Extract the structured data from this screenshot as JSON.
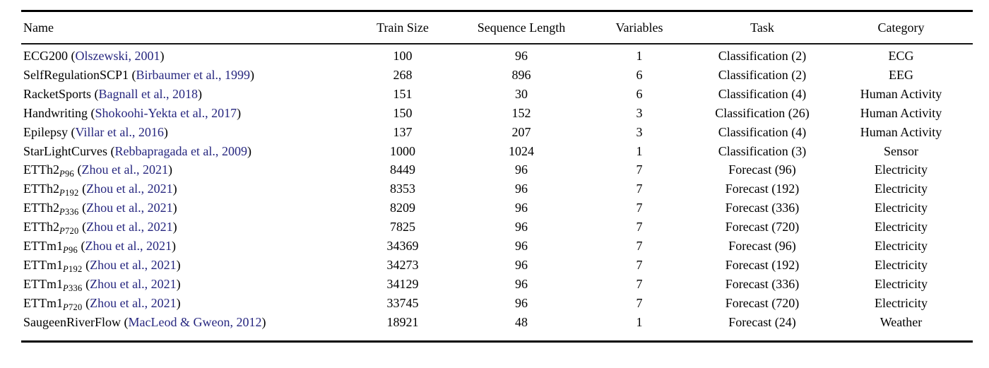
{
  "table": {
    "columns": [
      "Name",
      "Train Size",
      "Sequence Length",
      "Variables",
      "Task",
      "Category"
    ],
    "colors": {
      "citation_link": "#26267F",
      "text": "#000000",
      "rule": "#000000"
    },
    "rows": [
      {
        "name": "ECG200",
        "sub": "",
        "cite_author": "Olszewski",
        "cite_year": "2001",
        "train_size": "100",
        "sequence_length": "96",
        "variables": "1",
        "task": "Classification (2)",
        "category": "ECG"
      },
      {
        "name": "SelfRegulationSCP1",
        "sub": "",
        "cite_author": "Birbaumer et al.",
        "cite_year": "1999",
        "train_size": "268",
        "sequence_length": "896",
        "variables": "6",
        "task": "Classification (2)",
        "category": "EEG"
      },
      {
        "name": "RacketSports",
        "sub": "",
        "cite_author": "Bagnall et al.",
        "cite_year": "2018",
        "train_size": "151",
        "sequence_length": "30",
        "variables": "6",
        "task": "Classification (4)",
        "category": "Human Activity"
      },
      {
        "name": "Handwriting",
        "sub": "",
        "cite_author": "Shokoohi-Yekta et al.",
        "cite_year": "2017",
        "train_size": "150",
        "sequence_length": "152",
        "variables": "3",
        "task": "Classification (26)",
        "category": "Human Activity"
      },
      {
        "name": "Epilepsy",
        "sub": "",
        "cite_author": "Villar et al.",
        "cite_year": "2016",
        "train_size": "137",
        "sequence_length": "207",
        "variables": "3",
        "task": "Classification (4)",
        "category": "Human Activity"
      },
      {
        "name": "StarLightCurves",
        "sub": "",
        "cite_author": "Rebbapragada et al.",
        "cite_year": "2009",
        "train_size": "1000",
        "sequence_length": "1024",
        "variables": "1",
        "task": "Classification (3)",
        "category": "Sensor"
      },
      {
        "name": "ETTh2",
        "sub": "P96",
        "cite_author": "Zhou et al.",
        "cite_year": "2021",
        "train_size": "8449",
        "sequence_length": "96",
        "variables": "7",
        "task": "Forecast (96)",
        "category": "Electricity"
      },
      {
        "name": "ETTh2",
        "sub": "P192",
        "cite_author": "Zhou et al.",
        "cite_year": "2021",
        "train_size": "8353",
        "sequence_length": "96",
        "variables": "7",
        "task": "Forecast (192)",
        "category": "Electricity"
      },
      {
        "name": "ETTh2",
        "sub": "P336",
        "cite_author": "Zhou et al.",
        "cite_year": "2021",
        "train_size": "8209",
        "sequence_length": "96",
        "variables": "7",
        "task": "Forecast (336)",
        "category": "Electricity"
      },
      {
        "name": "ETTh2",
        "sub": "P720",
        "cite_author": "Zhou et al.",
        "cite_year": "2021",
        "train_size": "7825",
        "sequence_length": "96",
        "variables": "7",
        "task": "Forecast (720)",
        "category": "Electricity"
      },
      {
        "name": "ETTm1",
        "sub": "P96",
        "cite_author": "Zhou et al.",
        "cite_year": "2021",
        "train_size": "34369",
        "sequence_length": "96",
        "variables": "7",
        "task": "Forecast (96)",
        "category": "Electricity"
      },
      {
        "name": "ETTm1",
        "sub": "P192",
        "cite_author": "Zhou et al.",
        "cite_year": "2021",
        "train_size": "34273",
        "sequence_length": "96",
        "variables": "7",
        "task": "Forecast (192)",
        "category": "Electricity"
      },
      {
        "name": "ETTm1",
        "sub": "P336",
        "cite_author": "Zhou et al.",
        "cite_year": "2021",
        "train_size": "34129",
        "sequence_length": "96",
        "variables": "7",
        "task": "Forecast (336)",
        "category": "Electricity"
      },
      {
        "name": "ETTm1",
        "sub": "P720",
        "cite_author": "Zhou et al.",
        "cite_year": "2021",
        "train_size": "33745",
        "sequence_length": "96",
        "variables": "7",
        "task": "Forecast (720)",
        "category": "Electricity"
      },
      {
        "name": "SaugeenRiverFlow",
        "sub": "",
        "cite_author": "MacLeod & Gweon",
        "cite_year": "2012",
        "train_size": "18921",
        "sequence_length": "48",
        "variables": "1",
        "task": "Forecast (24)",
        "category": "Weather"
      }
    ]
  }
}
